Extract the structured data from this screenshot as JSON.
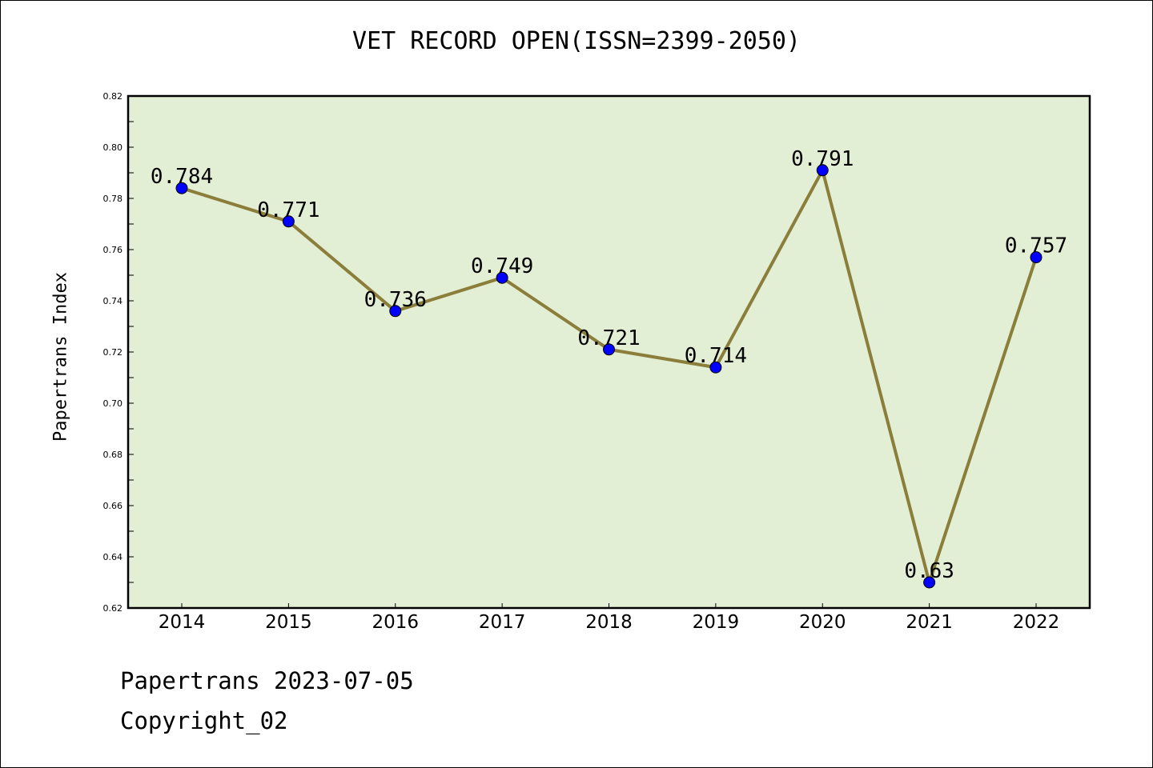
{
  "chart_data": {
    "type": "line",
    "title": "VET RECORD OPEN(ISSN=2399-2050)",
    "xlabel": "",
    "ylabel": "Papertrans Index",
    "categories": [
      "2014",
      "2015",
      "2016",
      "2017",
      "2018",
      "2019",
      "2020",
      "2021",
      "2022"
    ],
    "series": [
      {
        "name": "Papertrans Index",
        "values": [
          0.784,
          0.771,
          0.736,
          0.749,
          0.721,
          0.714,
          0.791,
          0.63,
          0.757
        ]
      }
    ],
    "data_labels": [
      "0.784",
      "0.771",
      "0.736",
      "0.749",
      "0.721",
      "0.714",
      "0.791",
      "0.63",
      "0.757"
    ],
    "ylim": [
      0.62,
      0.82
    ],
    "yticks": [
      "0.62",
      "0.64",
      "0.66",
      "0.68",
      "0.70",
      "0.72",
      "0.74",
      "0.76",
      "0.78",
      "0.80",
      "0.82"
    ],
    "grid": false,
    "colors": {
      "plot_bg": "#e2efd4",
      "line": "#8b7d3a",
      "marker": "#0000ff"
    }
  },
  "footer": {
    "line1": "Papertrans 2023-07-05",
    "line2": "Copyright_02"
  }
}
